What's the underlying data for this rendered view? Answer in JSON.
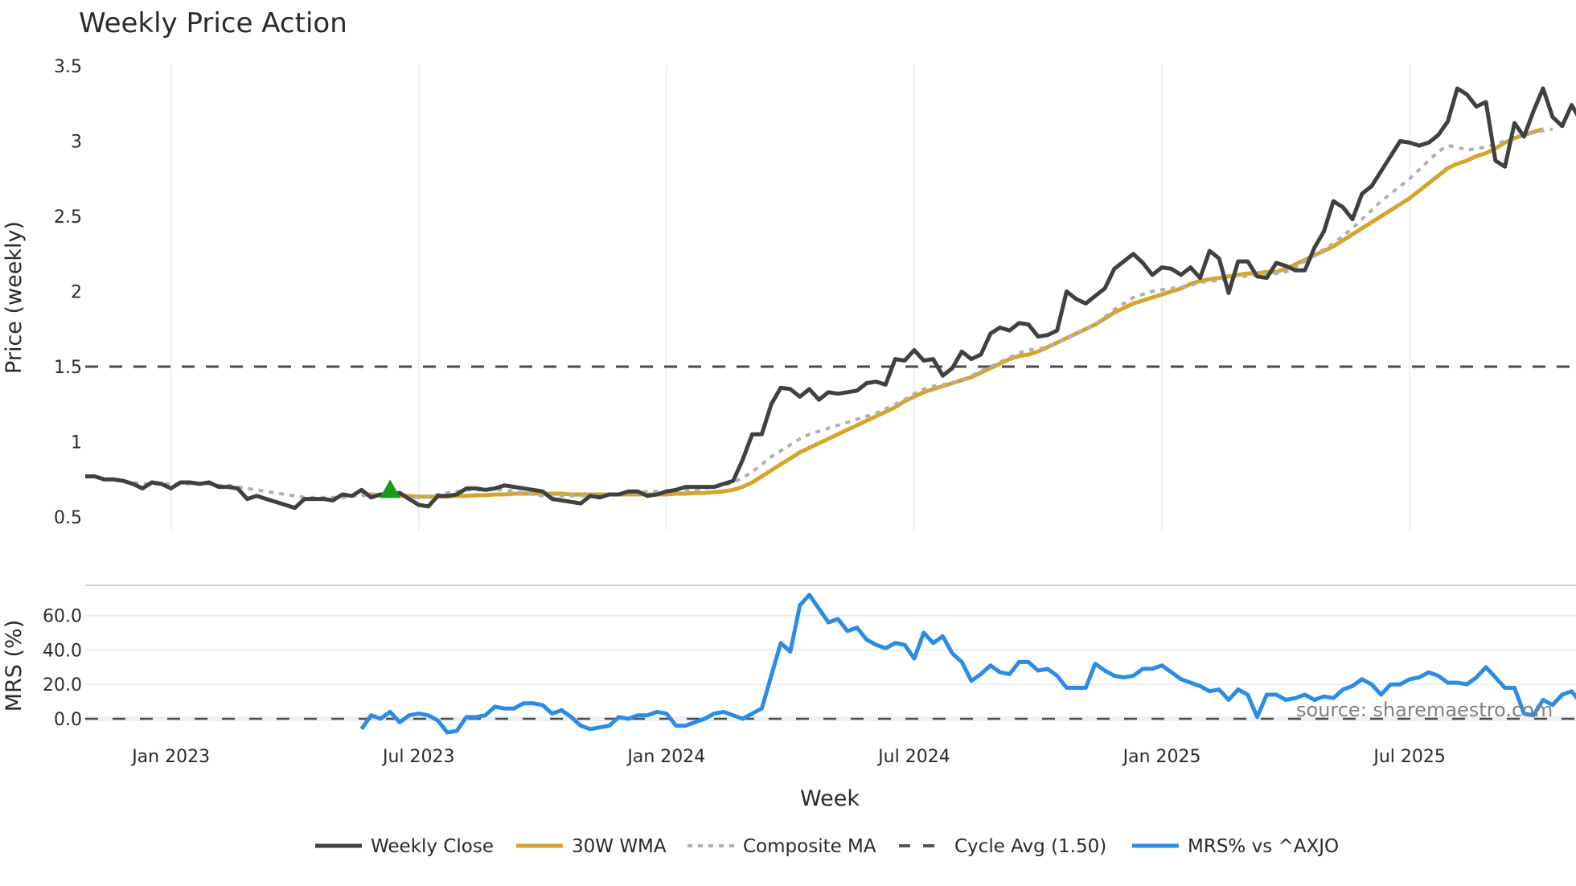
{
  "chart_data": [
    {
      "type": "line",
      "title": "Weekly Price Action",
      "xlabel": "Week",
      "ylabel": "Price (weekly)",
      "ylim": [
        0.45,
        3.55
      ],
      "yticks": [
        "3.5",
        "3",
        "2.5",
        "2",
        "1.5",
        "1",
        "0.5"
      ],
      "ytick_values": [
        3.5,
        3,
        2.5,
        2,
        1.5,
        1,
        0.5
      ],
      "grid": true,
      "start_week_offset": -9,
      "reference_lines": [
        {
          "name": "Cycle Avg (1.50)",
          "value": 1.5,
          "style": "dashed"
        }
      ],
      "markers": [
        {
          "name": "buy-signal",
          "shape": "triangle-up",
          "color": "#1a9a1a",
          "week": 32,
          "value": 0.68
        }
      ],
      "series": [
        {
          "name": "Weekly Close",
          "color": "#404040",
          "style": "solid",
          "start_week": 0,
          "values": [
            0.77,
            0.77,
            0.75,
            0.75,
            0.74,
            0.72,
            0.69,
            0.73,
            0.72,
            0.69,
            0.73,
            0.73,
            0.72,
            0.73,
            0.7,
            0.7,
            0.69,
            0.62,
            0.64,
            0.62,
            0.6,
            0.58,
            0.56,
            0.62,
            0.62,
            0.62,
            0.61,
            0.65,
            0.64,
            0.68,
            0.63,
            0.65,
            0.65,
            0.66,
            0.62,
            0.58,
            0.57,
            0.64,
            0.64,
            0.65,
            0.69,
            0.69,
            0.68,
            0.69,
            0.71,
            0.7,
            0.69,
            0.68,
            0.67,
            0.62,
            0.61,
            0.6,
            0.59,
            0.64,
            0.63,
            0.65,
            0.65,
            0.67,
            0.67,
            0.64,
            0.65,
            0.67,
            0.68,
            0.7,
            0.7,
            0.7,
            0.7,
            0.72,
            0.74,
            0.88,
            1.05,
            1.05,
            1.25,
            1.36,
            1.35,
            1.3,
            1.35,
            1.28,
            1.33,
            1.32,
            1.33,
            1.34,
            1.39,
            1.4,
            1.38,
            1.55,
            1.54,
            1.61,
            1.54,
            1.55,
            1.44,
            1.49,
            1.6,
            1.55,
            1.58,
            1.72,
            1.76,
            1.74,
            1.79,
            1.78,
            1.7,
            1.71,
            1.74,
            2.0,
            1.95,
            1.92,
            1.97,
            2.02,
            2.15,
            2.2,
            2.25,
            2.19,
            2.11,
            2.16,
            2.15,
            2.11,
            2.16,
            2.09,
            2.27,
            2.22,
            1.99,
            2.2,
            2.2,
            2.1,
            2.09,
            2.19,
            2.17,
            2.14,
            2.14,
            2.29,
            2.4,
            2.6,
            2.56,
            2.48,
            2.65,
            2.7,
            2.8,
            2.9,
            3.0,
            2.99,
            2.97,
            2.99,
            3.04,
            3.13,
            3.35,
            3.31,
            3.23,
            3.26,
            2.87,
            2.83,
            3.12,
            3.03,
            3.2,
            3.35,
            3.16,
            3.1,
            3.24,
            3.13
          ]
        },
        {
          "name": "30W WMA",
          "color": "#d4a52a",
          "style": "solid",
          "start_week": 29,
          "values": [
            0.65,
            0.65,
            0.645,
            0.645,
            0.64,
            0.64,
            0.635,
            0.635,
            0.635,
            0.635,
            0.64,
            0.64,
            0.645,
            0.645,
            0.65,
            0.65,
            0.655,
            0.655,
            0.655,
            0.655,
            0.655,
            0.655,
            0.65,
            0.65,
            0.65,
            0.65,
            0.65,
            0.65,
            0.65,
            0.65,
            0.65,
            0.65,
            0.65,
            0.655,
            0.655,
            0.66,
            0.66,
            0.665,
            0.67,
            0.68,
            0.7,
            0.73,
            0.77,
            0.81,
            0.85,
            0.89,
            0.93,
            0.96,
            0.99,
            1.02,
            1.05,
            1.08,
            1.11,
            1.14,
            1.17,
            1.2,
            1.23,
            1.27,
            1.3,
            1.33,
            1.35,
            1.37,
            1.39,
            1.41,
            1.43,
            1.46,
            1.49,
            1.52,
            1.55,
            1.57,
            1.58,
            1.6,
            1.63,
            1.66,
            1.69,
            1.72,
            1.75,
            1.78,
            1.82,
            1.86,
            1.89,
            1.92,
            1.94,
            1.96,
            1.98,
            2.0,
            2.02,
            2.05,
            2.07,
            2.08,
            2.09,
            2.1,
            2.11,
            2.12,
            2.12,
            2.13,
            2.13,
            2.15,
            2.18,
            2.21,
            2.24,
            2.27,
            2.3,
            2.34,
            2.38,
            2.42,
            2.46,
            2.5,
            2.54,
            2.58,
            2.62,
            2.67,
            2.72,
            2.77,
            2.82,
            2.85,
            2.87,
            2.9,
            2.92,
            2.95,
            2.99,
            3.02,
            3.04,
            3.06,
            3.08
          ]
        },
        {
          "name": "Composite MA",
          "color": "#b0b0b0",
          "style": "dotted",
          "start_week": 4,
          "values": [
            0.74,
            0.73,
            0.72,
            0.72,
            0.72,
            0.72,
            0.72,
            0.72,
            0.72,
            0.72,
            0.71,
            0.71,
            0.7,
            0.69,
            0.68,
            0.67,
            0.66,
            0.65,
            0.64,
            0.63,
            0.63,
            0.63,
            0.63,
            0.63,
            0.64,
            0.64,
            0.65,
            0.65,
            0.65,
            0.64,
            0.63,
            0.63,
            0.64,
            0.65,
            0.66,
            0.67,
            0.68,
            0.68,
            0.68,
            0.68,
            0.68,
            0.67,
            0.66,
            0.65,
            0.64,
            0.64,
            0.64,
            0.64,
            0.64,
            0.64,
            0.65,
            0.65,
            0.65,
            0.66,
            0.66,
            0.67,
            0.67,
            0.67,
            0.68,
            0.68,
            0.68,
            0.69,
            0.7,
            0.71,
            0.73,
            0.76,
            0.8,
            0.85,
            0.9,
            0.94,
            0.98,
            1.02,
            1.05,
            1.07,
            1.09,
            1.11,
            1.13,
            1.15,
            1.17,
            1.19,
            1.22,
            1.25,
            1.28,
            1.32,
            1.35,
            1.37,
            1.38,
            1.39,
            1.41,
            1.44,
            1.47,
            1.5,
            1.53,
            1.56,
            1.59,
            1.61,
            1.62,
            1.63,
            1.66,
            1.69,
            1.72,
            1.75,
            1.78,
            1.83,
            1.88,
            1.92,
            1.96,
            1.98,
            2.0,
            2.01,
            2.02,
            2.03,
            2.04,
            2.06,
            2.07,
            2.07,
            2.09,
            2.1,
            2.1,
            2.11,
            2.12,
            2.12,
            2.13,
            2.16,
            2.2,
            2.24,
            2.28,
            2.32,
            2.37,
            2.42,
            2.48,
            2.54,
            2.6,
            2.65,
            2.7,
            2.75,
            2.81,
            2.87,
            2.93,
            2.97,
            2.96,
            2.94,
            2.95,
            2.96,
            2.98,
            3.0,
            3.02,
            3.04,
            3.06,
            3.07,
            3.08
          ]
        }
      ]
    },
    {
      "type": "line",
      "title": "",
      "xlabel": "Week",
      "ylabel": "MRS (%)",
      "ylim": [
        -10,
        78
      ],
      "yticks": [
        "60.0",
        "40.0",
        "20.0",
        "0.0"
      ],
      "ytick_values": [
        60,
        40,
        20,
        0
      ],
      "grid": true,
      "reference_lines": [
        {
          "name": "zero",
          "value": 0,
          "style": "dashed"
        }
      ],
      "series": [
        {
          "name": "MRS% vs ^AXJO",
          "color": "#2b8ce6",
          "style": "solid",
          "start_week": 29,
          "values": [
            -6,
            2,
            0,
            4,
            -2,
            2,
            3,
            2,
            -1,
            -8,
            -7,
            1,
            1,
            2,
            7,
            6,
            6,
            9,
            9,
            8,
            3,
            5,
            1,
            -4,
            -6,
            -5,
            -4,
            1,
            0,
            2,
            2,
            4,
            3,
            -4,
            -4,
            -2,
            0,
            3,
            4,
            2,
            0,
            3,
            6,
            25,
            44,
            39,
            66,
            72,
            64,
            56,
            58,
            51,
            53,
            46,
            43,
            41,
            44,
            43,
            35,
            50,
            44,
            48,
            38,
            33,
            22,
            26,
            31,
            27,
            26,
            33,
            33,
            28,
            29,
            25,
            18,
            18,
            18,
            32,
            28,
            25,
            24,
            25,
            29,
            29,
            31,
            27,
            23,
            21,
            19,
            16,
            17,
            11,
            17,
            14,
            1,
            14,
            14,
            11,
            12,
            14,
            11,
            13,
            12,
            17,
            19,
            23,
            20,
            14,
            20,
            20,
            23,
            24,
            27,
            25,
            21,
            21,
            20,
            24,
            30,
            24,
            18,
            18,
            3,
            2,
            11,
            8,
            14,
            16,
            9,
            6,
            8,
            4
          ]
        }
      ],
      "annotation": "source: sharemaestro.com"
    }
  ],
  "x_axis": {
    "tick_labels": [
      "Jan 2023",
      "Jul 2023",
      "Jan 2024",
      "Jul 2024",
      "Jan 2025",
      "Jul 2025"
    ],
    "tick_weeks": [
      9,
      35,
      61,
      87,
      113,
      139
    ],
    "label": "Week"
  },
  "header": {
    "title": "Weekly Price Action"
  },
  "axes": {
    "price_label": "Price (weekly)",
    "mrs_label": "MRS (%)",
    "x_label": "Week"
  },
  "legend": {
    "items": [
      {
        "label": "Weekly Close",
        "color": "#404040",
        "style": "solid"
      },
      {
        "label": "30W WMA",
        "color": "#d4a52a",
        "style": "solid"
      },
      {
        "label": "Composite MA",
        "color": "#b0b0b0",
        "style": "dotted"
      },
      {
        "label": "Cycle Avg (1.50)",
        "color": "#555555",
        "style": "dashed"
      },
      {
        "label": "MRS% vs ^AXJO",
        "color": "#2b8ce6",
        "style": "solid"
      }
    ]
  },
  "source": {
    "text": "source: sharemaestro.com"
  }
}
